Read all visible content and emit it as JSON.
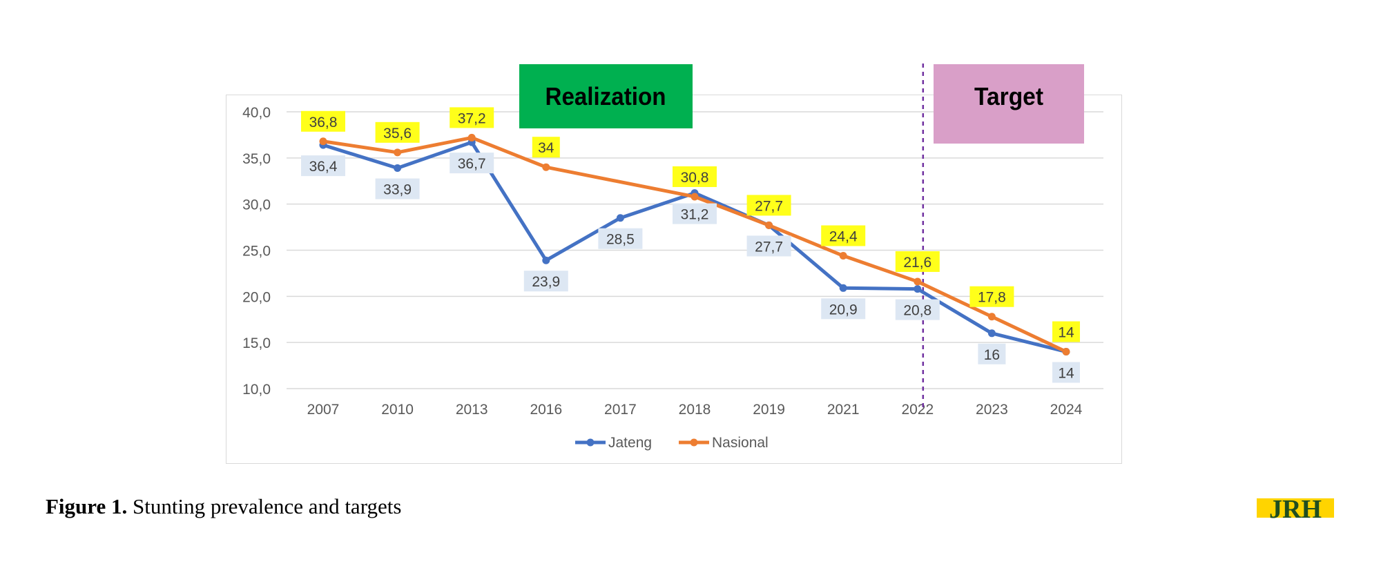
{
  "chart_data": {
    "type": "line",
    "categories": [
      "2007",
      "2010",
      "2013",
      "2016",
      "2017",
      "2018",
      "2019",
      "2021",
      "2022",
      "2023",
      "2024"
    ],
    "series": [
      {
        "name": "Jateng",
        "color": "#4472c4",
        "values": [
          36.4,
          33.9,
          36.7,
          23.9,
          28.5,
          31.2,
          27.7,
          20.9,
          20.8,
          16,
          14
        ],
        "labels": [
          "36,4",
          "33,9",
          "36,7",
          "23,9",
          "28,5",
          "31,2",
          "27,7",
          "20,9",
          "20,8",
          "16",
          "14"
        ],
        "label_position": "below",
        "label_bg": "#dde7f3"
      },
      {
        "name": "Nasional",
        "color": "#ed7d31",
        "values": [
          36.8,
          35.6,
          37.2,
          34,
          null,
          30.8,
          27.7,
          24.4,
          21.6,
          17.8,
          14
        ],
        "labels": [
          "36,8",
          "35,6",
          "37,2",
          "34",
          "",
          "30,8",
          "27,7",
          "24,4",
          "21,6",
          "17,8",
          "14"
        ],
        "label_position": "above",
        "label_bg": "#ffff1a"
      }
    ],
    "ylim": [
      10,
      40
    ],
    "yticks": [
      10,
      15,
      20,
      25,
      30,
      35,
      40
    ],
    "ytick_labels": [
      "10,0",
      "15,0",
      "20,0",
      "25,0",
      "30,0",
      "35,0",
      "40,0"
    ],
    "grid": true,
    "legend_placement": "bottom",
    "divider_after_category": "2022",
    "annotations": [
      {
        "text": "Realization",
        "bg": "#00b050",
        "color": "#000000"
      },
      {
        "text": "Target",
        "bg": "#d99fc8",
        "color": "#000000"
      }
    ]
  },
  "caption": {
    "label": "Figure 1.",
    "text": " Stunting prevalence and targets"
  },
  "logo": {
    "text": "JRH",
    "color": "#1f4e20",
    "accent": "#ffd400"
  }
}
